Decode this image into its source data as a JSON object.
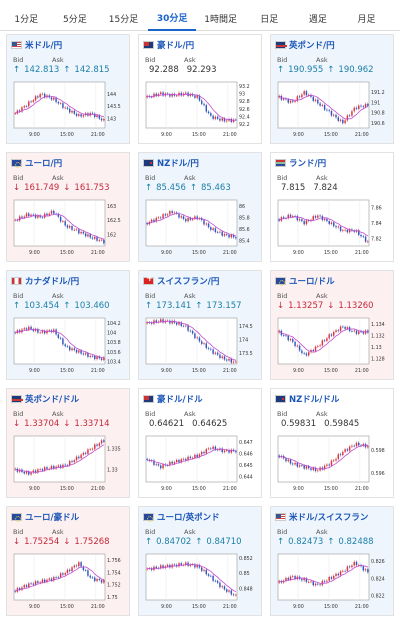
{
  "tabs": [
    {
      "label": "1分足",
      "active": false
    },
    {
      "label": "5分足",
      "active": false
    },
    {
      "label": "15分足",
      "active": false
    },
    {
      "label": "30分足",
      "active": true
    },
    {
      "label": "1時間足",
      "active": false
    },
    {
      "label": "日足",
      "active": false
    },
    {
      "label": "週足",
      "active": false
    },
    {
      "label": "月足",
      "active": false
    }
  ],
  "colors": {
    "up_bg": "#eef5fc",
    "down_bg": "#fdf0f1",
    "up_text": "#1b7fa8",
    "down_text": "#c6283a",
    "candle_up": "#d9343c",
    "candle_down": "#3355bb",
    "ma": "#c24ccf"
  },
  "bid_label": "Bid",
  "ask_label": "Ask",
  "x_ticks": [
    "9:00",
    "15:00",
    "21:00"
  ],
  "pairs": [
    {
      "name": "米ドル/円",
      "flag": "us",
      "dir": "up",
      "arrow": "↑",
      "bid": "142.813",
      "ask": "142.815",
      "y_ticks": [
        "144",
        "143.5",
        "143"
      ],
      "ylim": [
        142.6,
        144.5
      ],
      "trend": [
        143.2,
        143.6,
        144.0,
        143.8,
        143.4,
        143.1,
        143.2,
        142.9
      ]
    },
    {
      "name": "豪ドル/円",
      "flag": "au",
      "dir": "flat",
      "arrow": "",
      "bid": "92.288",
      "ask": "92.293",
      "y_ticks": [
        "93.2",
        "93",
        "92.8",
        "92.6",
        "92.4",
        "92.2"
      ],
      "ylim": [
        92.1,
        93.3
      ],
      "trend": [
        92.9,
        93.0,
        92.95,
        93.0,
        92.9,
        92.4,
        92.3,
        92.3
      ]
    },
    {
      "name": "英ポンド/円",
      "flag": "gb",
      "dir": "up",
      "arrow": "↑",
      "bid": "190.955",
      "ask": "190.962",
      "y_ticks": [
        "191.2",
        "191",
        "190.8",
        "190.6"
      ],
      "ylim": [
        190.5,
        191.4
      ],
      "trend": [
        191.1,
        191.0,
        191.2,
        191.0,
        190.8,
        190.6,
        190.9,
        190.95
      ]
    },
    {
      "name": "ユーロ/円",
      "flag": "eu",
      "dir": "down",
      "arrow": "↓",
      "bid": "161.749",
      "ask": "161.753",
      "y_ticks": [
        "163",
        "162.5",
        "162"
      ],
      "ylim": [
        161.6,
        163.2
      ],
      "trend": [
        162.5,
        162.7,
        162.6,
        162.8,
        162.3,
        162.1,
        161.9,
        161.75
      ]
    },
    {
      "name": "NZドル/円",
      "flag": "nz",
      "dir": "up",
      "arrow": "↑",
      "bid": "85.456",
      "ask": "85.463",
      "y_ticks": [
        "86",
        "85.8",
        "85.6",
        "85.4"
      ],
      "ylim": [
        85.3,
        86.1
      ],
      "trend": [
        85.7,
        85.8,
        85.9,
        85.75,
        85.8,
        85.6,
        85.5,
        85.45
      ]
    },
    {
      "name": "ランド/円",
      "flag": "za",
      "dir": "flat",
      "arrow": "",
      "bid": "7.815",
      "ask": "7.824",
      "y_ticks": [
        "7.86",
        "7.84",
        "7.82"
      ],
      "ylim": [
        7.81,
        7.87
      ],
      "trend": [
        7.845,
        7.85,
        7.84,
        7.85,
        7.84,
        7.83,
        7.83,
        7.815
      ]
    },
    {
      "name": "カナダドル/円",
      "flag": "ca",
      "dir": "up",
      "arrow": "↑",
      "bid": "103.454",
      "ask": "103.460",
      "y_ticks": [
        "104.2",
        "104",
        "103.8",
        "103.6",
        "103.4"
      ],
      "ylim": [
        103.35,
        104.3
      ],
      "trend": [
        104.0,
        104.1,
        104.0,
        104.05,
        103.7,
        103.6,
        103.5,
        103.45
      ]
    },
    {
      "name": "スイスフラン/円",
      "flag": "ch",
      "dir": "up",
      "arrow": "↑",
      "bid": "173.141",
      "ask": "173.157",
      "y_ticks": [
        "174.5",
        "174",
        "173.5"
      ],
      "ylim": [
        173.1,
        174.8
      ],
      "trend": [
        174.6,
        174.7,
        174.65,
        174.5,
        174.0,
        173.6,
        173.3,
        173.15
      ]
    },
    {
      "name": "ユーロ/ドル",
      "flag": "eu",
      "dir": "down",
      "arrow": "↓",
      "bid": "1.13257",
      "ask": "1.13260",
      "y_ticks": [
        "1.134",
        "1.132",
        "1.13",
        "1.128"
      ],
      "ylim": [
        1.127,
        1.135
      ],
      "trend": [
        1.1325,
        1.131,
        1.1285,
        1.13,
        1.132,
        1.1335,
        1.1325,
        1.13257
      ]
    },
    {
      "name": "英ポンド/ドル",
      "flag": "gb",
      "dir": "down",
      "arrow": "↓",
      "bid": "1.33704",
      "ask": "1.33714",
      "y_ticks": [
        "1.335",
        "1.33"
      ],
      "ylim": [
        1.327,
        1.338
      ],
      "trend": [
        1.33,
        1.329,
        1.33,
        1.3305,
        1.331,
        1.333,
        1.335,
        1.337
      ]
    },
    {
      "name": "豪ドル/ドル",
      "flag": "au",
      "dir": "flat",
      "arrow": "",
      "bid": "0.64621",
      "ask": "0.64625",
      "y_ticks": [
        "0.647",
        "0.646",
        "0.645",
        "0.644"
      ],
      "ylim": [
        0.6435,
        0.6475
      ],
      "trend": [
        0.6455,
        0.6448,
        0.6452,
        0.6455,
        0.6458,
        0.6465,
        0.6462,
        0.6462
      ]
    },
    {
      "name": "NZドル/ドル",
      "flag": "nz",
      "dir": "flat",
      "arrow": "",
      "bid": "0.59831",
      "ask": "0.59845",
      "y_ticks": [
        "0.598",
        "0.596"
      ],
      "ylim": [
        0.5952,
        0.5992
      ],
      "trend": [
        0.5975,
        0.5968,
        0.5965,
        0.5962,
        0.5968,
        0.5978,
        0.5985,
        0.5983
      ]
    },
    {
      "name": "ユーロ/豪ドル",
      "flag": "eu",
      "dir": "down",
      "arrow": "↓",
      "bid": "1.75254",
      "ask": "1.75268",
      "y_ticks": [
        "1.756",
        "1.754",
        "1.752",
        "1.75"
      ],
      "ylim": [
        1.7495,
        1.757
      ],
      "trend": [
        1.751,
        1.752,
        1.7525,
        1.753,
        1.754,
        1.7555,
        1.753,
        1.7525
      ]
    },
    {
      "name": "ユーロ/英ポンド",
      "flag": "eu",
      "dir": "up",
      "arrow": "↑",
      "bid": "0.84702",
      "ask": "0.84710",
      "y_ticks": [
        "0.852",
        "0.85",
        "0.848"
      ],
      "ylim": [
        0.8465,
        0.8525
      ],
      "trend": [
        0.8505,
        0.8508,
        0.851,
        0.8512,
        0.8509,
        0.8495,
        0.848,
        0.847
      ]
    },
    {
      "name": "米ドル/スイスフラン",
      "flag": "us",
      "dir": "up",
      "arrow": "↑",
      "bid": "0.82473",
      "ask": "0.82488",
      "y_ticks": [
        "0.826",
        "0.824",
        "0.822"
      ],
      "ylim": [
        0.8215,
        0.8268
      ],
      "trend": [
        0.8235,
        0.8242,
        0.8238,
        0.8232,
        0.824,
        0.8248,
        0.8258,
        0.8247
      ]
    }
  ]
}
